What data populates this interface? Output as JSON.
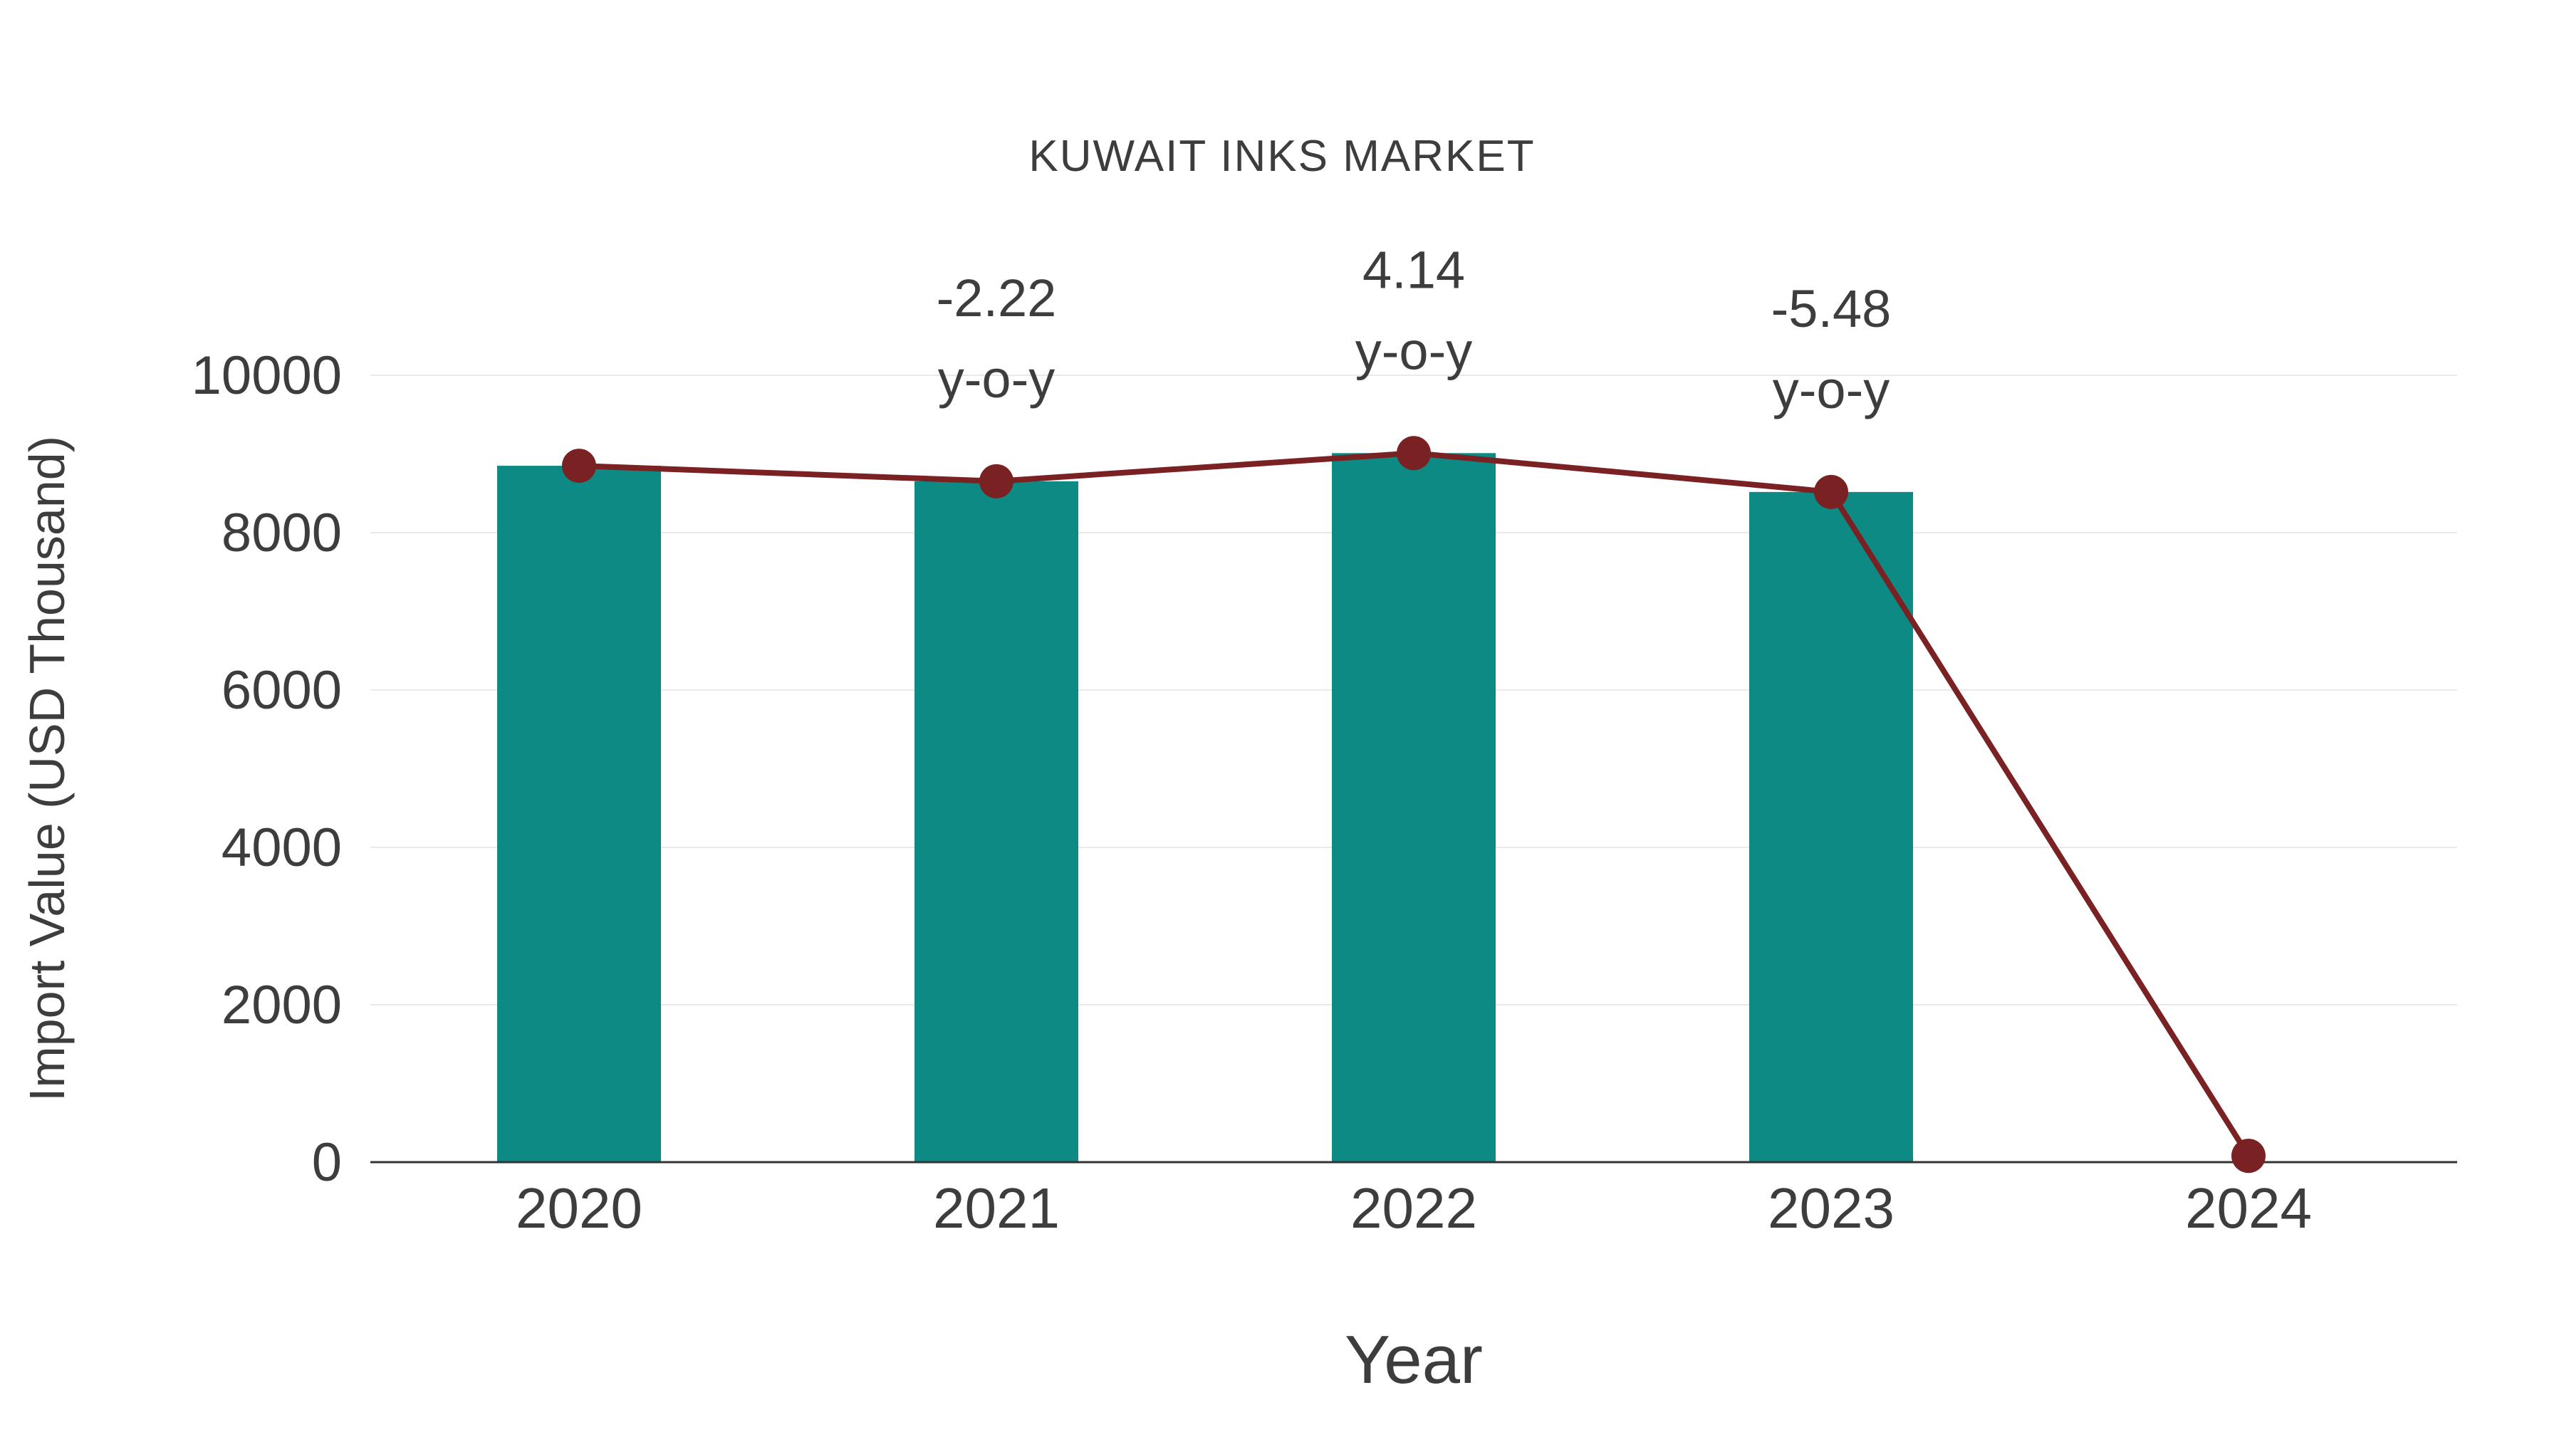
{
  "chart_data": {
    "type": "bar",
    "title": "KUWAIT INKS MARKET",
    "xlabel": "Year",
    "ylabel": "Import Value (USD Thousand)",
    "categories": [
      "2020",
      "2021",
      "2022",
      "2023",
      "2024"
    ],
    "series": [
      {
        "name": "Import Value (USD Thousand)",
        "type": "bar",
        "color": "#0e8a84",
        "values": [
          8850,
          8653,
          9011,
          8517,
          null
        ]
      },
      {
        "name": "Trend line",
        "type": "line",
        "color": "#7a2223",
        "values": [
          8850,
          8653,
          9011,
          8517,
          80
        ]
      }
    ],
    "annotations": [
      {
        "category": "2021",
        "lines": [
          "-2.22",
          "y-o-y"
        ]
      },
      {
        "category": "2022",
        "lines": [
          "4.14",
          "y-o-y"
        ]
      },
      {
        "category": "2023",
        "lines": [
          "-5.48",
          "y-o-y"
        ]
      }
    ],
    "ylim": [
      0,
      10000
    ],
    "yticks": [
      0,
      2000,
      4000,
      6000,
      8000,
      10000
    ],
    "grid": true,
    "legend": "none",
    "colors": {
      "bar": "#0e8a84",
      "line": "#7a2223",
      "marker": "#7a2223",
      "grid": "#e9e9e9",
      "axis": "#333333",
      "tick_text": "#3d3d3d",
      "title_text": "#3d3d3d",
      "annotation_text": "#3d3d3d",
      "background": "#ffffff"
    }
  }
}
